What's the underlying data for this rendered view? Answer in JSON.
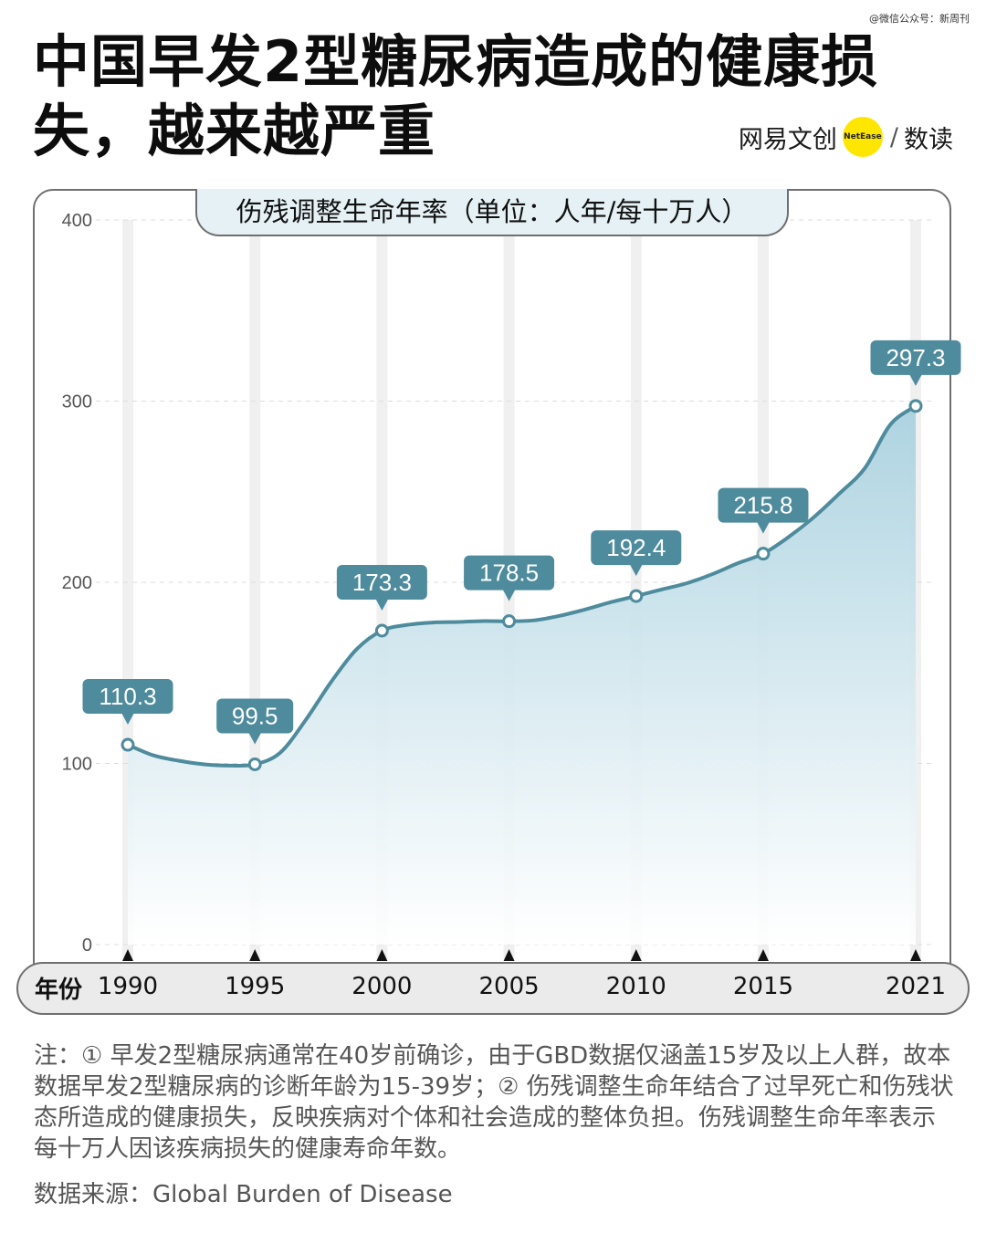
{
  "watermark": "@微信公众号：新周刊",
  "headline": "中国早发2型糖尿病造成的健康损失，越来越严重",
  "brand": {
    "name": "网易文创",
    "badge": "NetEase",
    "separator": "/",
    "channel": "数读",
    "badge_color": "#ffe600"
  },
  "colors": {
    "line": "#4e8b9c",
    "area_top": "#a9d1df",
    "label_bg": "#4e8b9c",
    "guide": "#f0f0f0"
  },
  "chart_data": {
    "type": "area",
    "title": "伤残调整生命年率（单位：人年/每十万人）",
    "xlabel": "年份",
    "ylim": [
      0,
      400
    ],
    "yticks": [
      0,
      100,
      200,
      300,
      400
    ],
    "xlim": [
      1990,
      2021
    ],
    "xticks": [
      1990,
      1995,
      2000,
      2005,
      2010,
      2015,
      2021
    ],
    "grid": true,
    "x": [
      1990,
      1991,
      1992,
      1993,
      1994,
      1995,
      1996,
      1997,
      1998,
      1999,
      2000,
      2001,
      2002,
      2003,
      2004,
      2005,
      2006,
      2007,
      2008,
      2009,
      2010,
      2011,
      2012,
      2013,
      2014,
      2015,
      2016,
      2017,
      2018,
      2019,
      2020,
      2021
    ],
    "y": [
      110.3,
      104.5,
      101.5,
      99.5,
      98.8,
      99.5,
      106,
      124,
      145,
      163,
      173.3,
      176.5,
      177.8,
      178.1,
      178.6,
      178.5,
      179,
      181.5,
      185,
      189,
      192.4,
      196,
      199.5,
      204.5,
      210.5,
      215.8,
      225,
      236,
      249,
      263,
      287,
      297.3
    ],
    "annotations": [
      {
        "x": 1990,
        "y": 110.3,
        "label": "110.3"
      },
      {
        "x": 1995,
        "y": 99.5,
        "label": "99.5"
      },
      {
        "x": 2000,
        "y": 173.3,
        "label": "173.3"
      },
      {
        "x": 2005,
        "y": 178.5,
        "label": "178.5"
      },
      {
        "x": 2010,
        "y": 192.4,
        "label": "192.4"
      },
      {
        "x": 2015,
        "y": 215.8,
        "label": "215.8"
      },
      {
        "x": 2021,
        "y": 297.3,
        "label": "297.3"
      }
    ]
  },
  "notes": "注：① 早发2型糖尿病通常在40岁前确诊，由于GBD数据仅涵盖15岁及以上人群，故本数据早发2型糖尿病的诊断年龄为15-39岁；② 伤残调整生命年结合了过早死亡和伤残状态所造成的健康损失，反映疾病对个体和社会造成的整体负担。伤残调整生命年率表示每十万人因该疾病损失的健康寿命年数。",
  "source": "数据来源：Global Burden of Disease"
}
